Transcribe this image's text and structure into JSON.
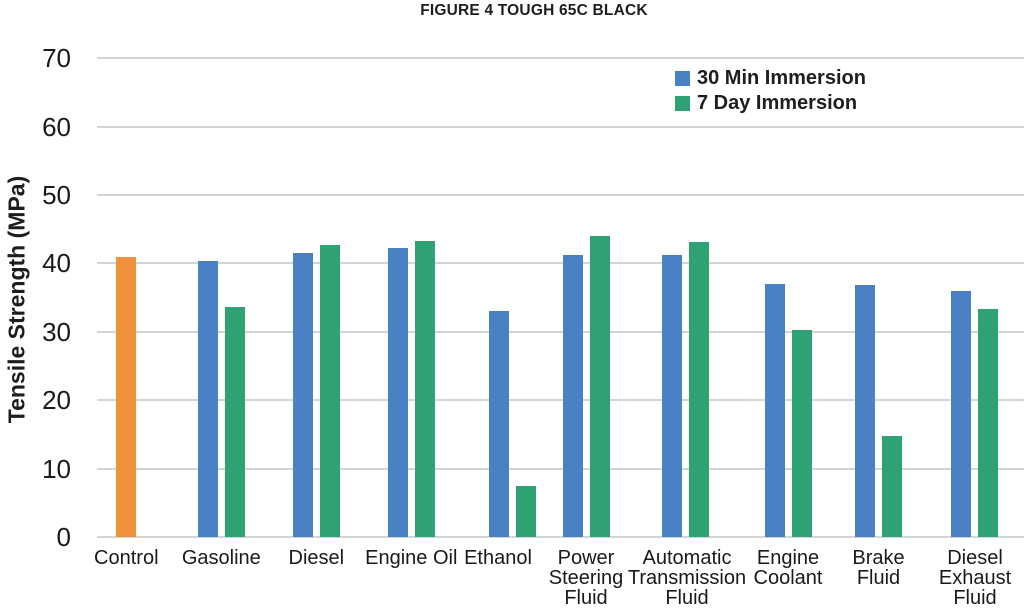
{
  "chart_data": {
    "type": "bar",
    "title": "FIGURE 4 TOUGH 65C BLACK",
    "ylabel": "Tensile Strength (MPa)",
    "xlabel": "",
    "ylim": [
      0,
      70
    ],
    "ytick_step": 10,
    "ytick_labels": [
      "0",
      "10",
      "20",
      "30",
      "40",
      "50",
      "60",
      "70"
    ],
    "grid": "horizontal",
    "legend_position": "top-right",
    "categories": [
      "Control",
      "Gasoline",
      "Diesel",
      "Engine Oil",
      "Ethanol",
      "Power Steering Fluid",
      "Automatic Transmission Fluid",
      "Engine Coolant",
      "Brake Fluid",
      "Diesel Exhaust Fluid"
    ],
    "category_display_lines": [
      [
        "Control"
      ],
      [
        "Gasoline"
      ],
      [
        "Diesel"
      ],
      [
        "Engine Oil"
      ],
      [
        "Ethanol"
      ],
      [
        "Power",
        "Steering",
        "Fluid"
      ],
      [
        "Automatic",
        "Transmission",
        "Fluid"
      ],
      [
        "Engine",
        "Coolant"
      ],
      [
        "Brake",
        "Fluid"
      ],
      [
        "Diesel",
        "Exhaust",
        "Fluid"
      ]
    ],
    "series": [
      {
        "name": "30 Min Immersion",
        "color": "#4A81C4",
        "values": [
          41.0,
          40.4,
          41.6,
          42.2,
          33.0,
          41.2,
          41.3,
          37.0,
          36.9,
          36.0
        ]
      },
      {
        "name": "7 Day Immersion",
        "color": "#2FA273",
        "values": [
          null,
          33.7,
          42.7,
          43.3,
          7.4,
          44.0,
          43.2,
          30.3,
          14.7,
          33.3
        ]
      }
    ],
    "control_bar": {
      "category": "Control",
      "single_bar": true,
      "color": "#F0913C"
    }
  }
}
